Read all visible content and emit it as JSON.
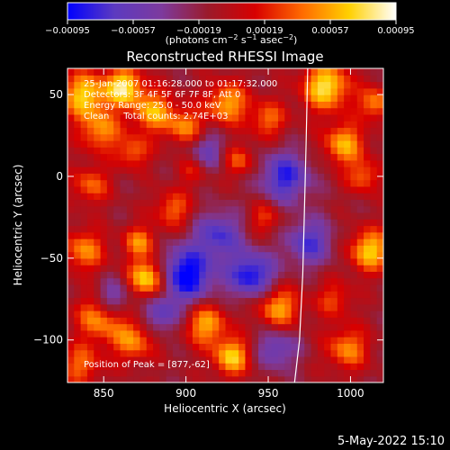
{
  "chart_data": {
    "type": "heatmap",
    "title": "Reconstructed RHESSI Image",
    "xlabel": "Heliocentric X (arcsec)",
    "ylabel": "Heliocentric Y (arcsec)",
    "xlim": [
      828,
      1020
    ],
    "ylim": [
      -126,
      66
    ],
    "x_ticks": [
      850,
      900,
      950,
      1000
    ],
    "x_tick_labels": [
      "850",
      "900",
      "950",
      "1000"
    ],
    "y_ticks": [
      50,
      0,
      -50,
      -100
    ],
    "y_tick_labels": [
      "50",
      "0",
      "−50",
      "−100"
    ],
    "colorbar": {
      "min": -0.00095,
      "max": 0.00095,
      "ticks": [
        -0.00095,
        -0.00057,
        -0.00019,
        0.00019,
        0.00057,
        0.00095
      ],
      "tick_labels": [
        "−0.00095",
        "−0.00057",
        "−0.00019",
        "0.00019",
        "0.00057",
        "0.00095"
      ],
      "unit_prefix": "(photons cm",
      "unit_exp1": "−2",
      "unit_mid": " s",
      "unit_exp2": "−1",
      "unit_mid2": " asec",
      "unit_exp3": "−2",
      "unit_suffix": ")",
      "colors": [
        "#0000ff",
        "#5c3ac0",
        "#7d3a9e",
        "#9b1a2a",
        "#d80000",
        "#ff6a00",
        "#ffd000",
        "#ffffff"
      ]
    },
    "annotations": {
      "time_range": "25-Jan-2007 01:16:28.000 to 01:17:32.000",
      "detectors": "Detectors: 3F 4F 5F 6F 7F 8F, Att 0",
      "energy": "Energy Range: 25.0 - 50.0 keV",
      "clean": "Clean     Total counts: 2.74E+03",
      "peak": "Position of Peak = [877,-62]"
    },
    "peak": {
      "x": 877,
      "y": -62
    },
    "limb_points": [
      [
        966,
        -126
      ],
      [
        969,
        -100
      ],
      [
        971,
        -60
      ],
      [
        972,
        -20
      ],
      [
        973,
        20
      ],
      [
        974,
        66
      ]
    ],
    "bright_regions": [
      {
        "x": 838,
        "y": 50,
        "v": 0.0008,
        "r": 10
      },
      {
        "x": 848,
        "y": 28,
        "v": 0.0006,
        "r": 9
      },
      {
        "x": 842,
        "y": -5,
        "v": 0.0005,
        "r": 8
      },
      {
        "x": 838,
        "y": -45,
        "v": 0.0006,
        "r": 9
      },
      {
        "x": 848,
        "y": -85,
        "v": 0.0007,
        "r": 10
      },
      {
        "x": 836,
        "y": -115,
        "v": 0.0005,
        "r": 9
      },
      {
        "x": 862,
        "y": 55,
        "v": 0.0009,
        "r": 8
      },
      {
        "x": 880,
        "y": 40,
        "v": 0.0007,
        "r": 9
      },
      {
        "x": 868,
        "y": 15,
        "v": 0.0005,
        "r": 7
      },
      {
        "x": 877,
        "y": -62,
        "v": 0.00095,
        "r": 8
      },
      {
        "x": 872,
        "y": -40,
        "v": 0.0006,
        "r": 7
      },
      {
        "x": 868,
        "y": -100,
        "v": 0.0006,
        "r": 9
      },
      {
        "x": 900,
        "y": 30,
        "v": 0.0006,
        "r": 8
      },
      {
        "x": 905,
        "y": 5,
        "v": 0.0004,
        "r": 7
      },
      {
        "x": 892,
        "y": -20,
        "v": 0.0005,
        "r": 8
      },
      {
        "x": 912,
        "y": -90,
        "v": 0.0007,
        "r": 9
      },
      {
        "x": 928,
        "y": -110,
        "v": 0.0008,
        "r": 8
      },
      {
        "x": 925,
        "y": 45,
        "v": 0.0007,
        "r": 9
      },
      {
        "x": 932,
        "y": 10,
        "v": 0.0005,
        "r": 7
      },
      {
        "x": 950,
        "y": 35,
        "v": 0.0005,
        "r": 8
      },
      {
        "x": 948,
        "y": -25,
        "v": 0.0004,
        "r": 7
      },
      {
        "x": 956,
        "y": -80,
        "v": 0.0007,
        "r": 9
      },
      {
        "x": 985,
        "y": 55,
        "v": 0.0009,
        "r": 10
      },
      {
        "x": 996,
        "y": 20,
        "v": 0.0007,
        "r": 9
      },
      {
        "x": 1008,
        "y": 0,
        "v": 0.0005,
        "r": 7
      },
      {
        "x": 1012,
        "y": -45,
        "v": 0.0008,
        "r": 9
      },
      {
        "x": 990,
        "y": -75,
        "v": 0.0004,
        "r": 8
      },
      {
        "x": 998,
        "y": -105,
        "v": 0.0006,
        "r": 9
      },
      {
        "x": 1015,
        "y": 45,
        "v": 0.0006,
        "r": 7
      }
    ],
    "dark_regions": [
      {
        "x": 900,
        "y": -60,
        "v": -0.0009,
        "r": 12
      },
      {
        "x": 940,
        "y": -60,
        "v": -0.0008,
        "r": 10
      },
      {
        "x": 960,
        "y": 0,
        "v": -0.0007,
        "r": 11
      },
      {
        "x": 920,
        "y": -35,
        "v": -0.0006,
        "r": 10
      },
      {
        "x": 855,
        "y": -75,
        "v": -0.0006,
        "r": 8
      },
      {
        "x": 912,
        "y": 15,
        "v": -0.0005,
        "r": 9
      },
      {
        "x": 975,
        "y": -40,
        "v": -0.0006,
        "r": 10
      },
      {
        "x": 955,
        "y": -105,
        "v": -0.0005,
        "r": 9
      },
      {
        "x": 885,
        "y": -85,
        "v": -0.0005,
        "r": 8
      }
    ]
  },
  "footer_date": "5-May-2022 15:10"
}
